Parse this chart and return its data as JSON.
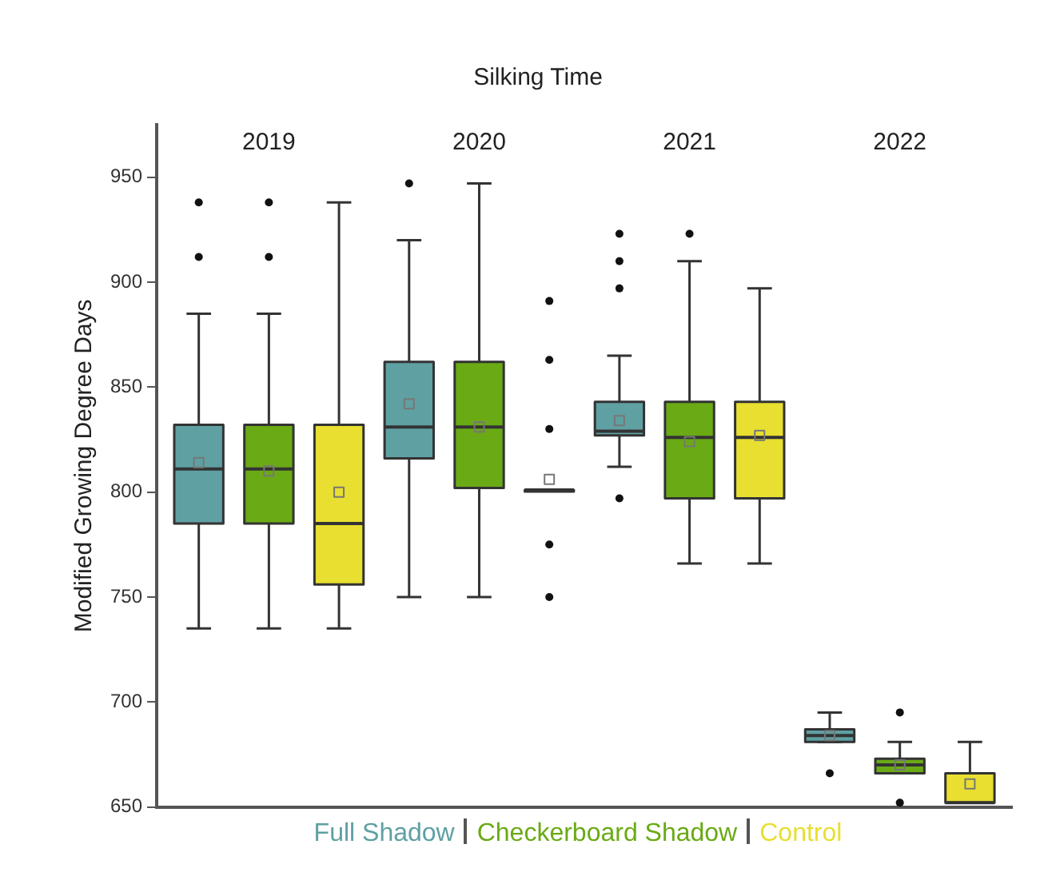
{
  "chart_data": {
    "type": "box",
    "title": "Silking Time",
    "ylabel": "Modified Growing Degree Days",
    "categories": [
      "2019",
      "2020",
      "2021",
      "2022"
    ],
    "ylim": [
      650,
      975
    ],
    "yticks": [
      650,
      700,
      750,
      800,
      850,
      900,
      950
    ],
    "grid": false,
    "legend": "bottom",
    "series": [
      {
        "name": "Full Shadow",
        "color": "#5fa0a3",
        "boxes": [
          {
            "low": 735,
            "q1": 785,
            "median": 811,
            "q3": 832,
            "high": 885,
            "mean": 814,
            "outliers": [
              912,
              938
            ]
          },
          {
            "low": 750,
            "q1": 816,
            "median": 831,
            "q3": 862,
            "high": 920,
            "mean": 842,
            "outliers": [
              947
            ]
          },
          {
            "low": 812,
            "q1": 827,
            "median": 829,
            "q3": 843,
            "high": 865,
            "mean": 834,
            "outliers": [
              797,
              897,
              910,
              923
            ]
          },
          {
            "low": 681,
            "q1": 681,
            "median": 684,
            "q3": 687,
            "high": 695,
            "mean": 684,
            "outliers": [
              666
            ]
          }
        ]
      },
      {
        "name": "Checkerboard Shadow",
        "color": "#6aaa15",
        "boxes": [
          {
            "low": 735,
            "q1": 785,
            "median": 811,
            "q3": 832,
            "high": 885,
            "mean": 810,
            "outliers": [
              912,
              938
            ]
          },
          {
            "low": 750,
            "q1": 802,
            "median": 831,
            "q3": 862,
            "high": 947,
            "mean": 831
          },
          {
            "low": 766,
            "q1": 797,
            "median": 826,
            "q3": 843,
            "high": 910,
            "mean": 824,
            "outliers": [
              923
            ]
          },
          {
            "low": 666,
            "q1": 666,
            "median": 670,
            "q3": 673,
            "high": 681,
            "mean": 670,
            "outliers": [
              652,
              695
            ]
          }
        ]
      },
      {
        "name": "Control",
        "color": "#e8df30",
        "boxes": [
          {
            "low": 735,
            "q1": 756,
            "median": 785,
            "q3": 832,
            "high": 938,
            "mean": 800
          },
          {
            "low": 801,
            "q1": 801,
            "median": 801,
            "q3": 801,
            "high": 801,
            "mean": 806,
            "outliers": [
              750,
              775,
              830,
              863,
              891
            ]
          },
          {
            "low": 766,
            "q1": 797,
            "median": 826,
            "q3": 843,
            "high": 897,
            "mean": 827
          },
          {
            "low": 652,
            "q1": 652,
            "median": 652,
            "q3": 666,
            "high": 681,
            "mean": 661
          }
        ]
      }
    ]
  }
}
